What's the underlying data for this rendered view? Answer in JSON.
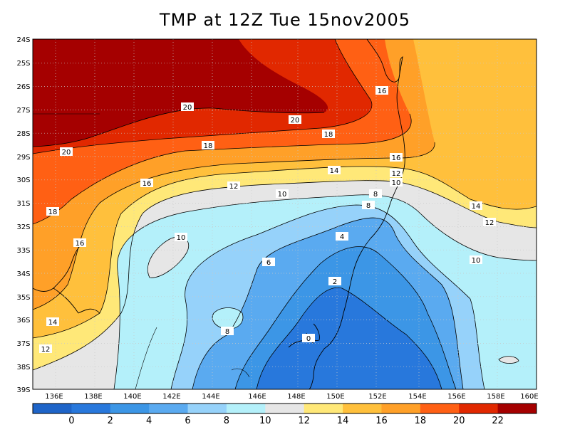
{
  "title": "TMP at 12Z Tue 15nov2005",
  "lat_labels": [
    "24S",
    "25S",
    "26S",
    "27S",
    "28S",
    "29S",
    "30S",
    "31S",
    "32S",
    "33S",
    "34S",
    "35S",
    "36S",
    "37S",
    "38S",
    "39S"
  ],
  "lon_labels": [
    "136E",
    "138E",
    "140E",
    "142E",
    "144E",
    "146E",
    "148E",
    "150E",
    "152E",
    "154E",
    "156E",
    "158E",
    "160E"
  ],
  "colorbar": {
    "colors": [
      "#1e64c8",
      "#2878dc",
      "#3c96e6",
      "#5aaaf0",
      "#96d2fa",
      "#b4f0fa",
      "#e6e6e6",
      "#ffe878",
      "#ffc03c",
      "#ffa028",
      "#ff6014",
      "#e12800",
      "#a50000"
    ],
    "labels": [
      "0",
      "2",
      "4",
      "6",
      "8",
      "10",
      "12",
      "14",
      "16",
      "18",
      "20",
      "22"
    ]
  },
  "contour_labels": [
    {
      "text": "20"
    },
    {
      "text": "20"
    },
    {
      "text": "20"
    },
    {
      "text": "18"
    },
    {
      "text": "18"
    },
    {
      "text": "18"
    },
    {
      "text": "16"
    },
    {
      "text": "16"
    },
    {
      "text": "16"
    },
    {
      "text": "16"
    },
    {
      "text": "14"
    },
    {
      "text": "14"
    },
    {
      "text": "14"
    },
    {
      "text": "12"
    },
    {
      "text": "12"
    },
    {
      "text": "12"
    },
    {
      "text": "12"
    },
    {
      "text": "10"
    },
    {
      "text": "10"
    },
    {
      "text": "10"
    },
    {
      "text": "10"
    },
    {
      "text": "8"
    },
    {
      "text": "8"
    },
    {
      "text": "8"
    },
    {
      "text": "6"
    },
    {
      "text": "4"
    },
    {
      "text": "2"
    },
    {
      "text": "0"
    }
  ]
}
